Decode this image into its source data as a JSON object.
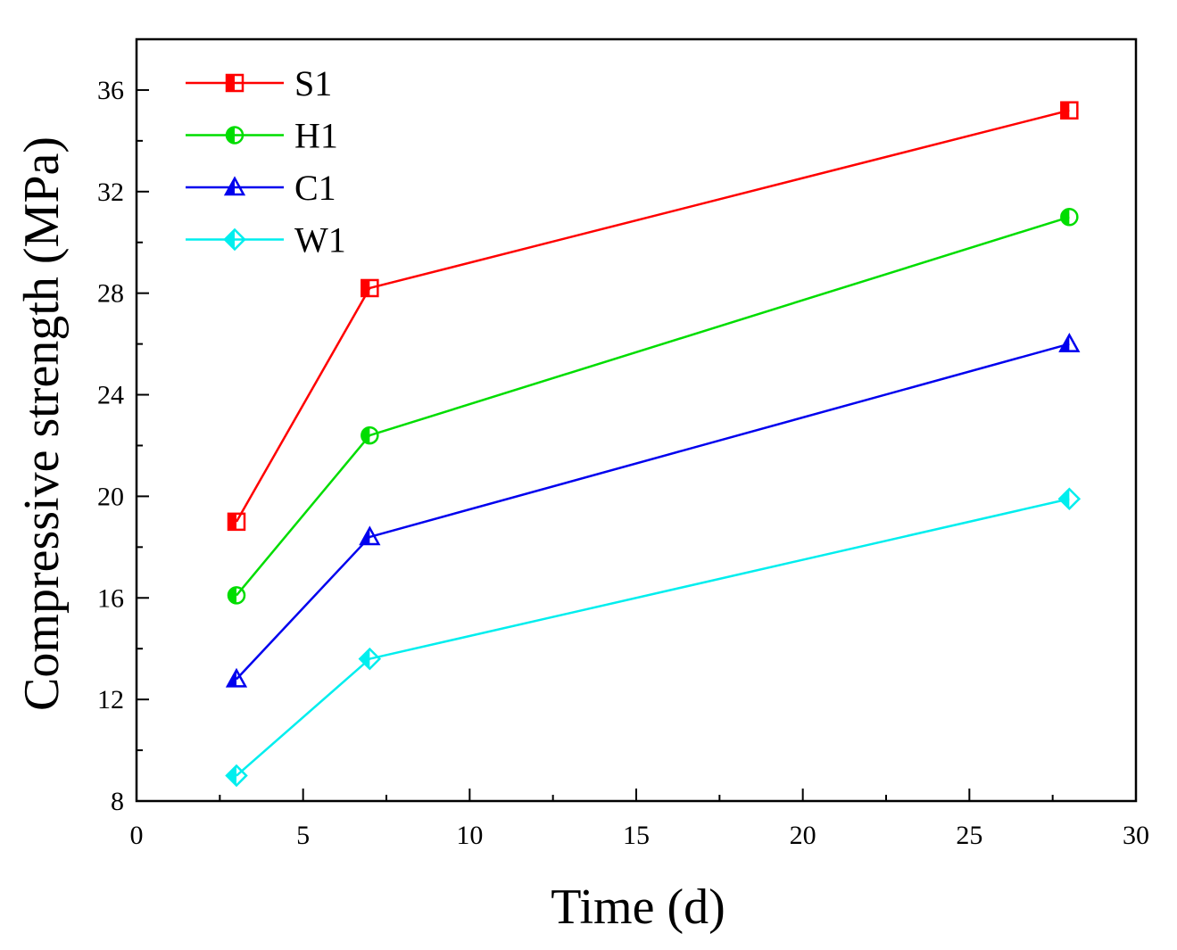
{
  "chart_data": {
    "type": "line",
    "title": "",
    "xlabel": "Time (d)",
    "ylabel": "Compressive strength (MPa)",
    "xlim": [
      0,
      30
    ],
    "ylim": [
      8,
      38
    ],
    "xticks": [
      0,
      5,
      10,
      15,
      20,
      25,
      30
    ],
    "yticks": [
      8,
      12,
      16,
      20,
      24,
      28,
      32,
      36
    ],
    "x": [
      3,
      7,
      28
    ],
    "legend_position": "top-left",
    "grid": false,
    "series": [
      {
        "name": "S1",
        "values": [
          19.0,
          28.2,
          35.2
        ],
        "color": "#ff0000",
        "marker": "square-half"
      },
      {
        "name": "H1",
        "values": [
          16.1,
          22.4,
          31.0
        ],
        "color": "#00dd00",
        "marker": "circle-half"
      },
      {
        "name": "C1",
        "values": [
          12.8,
          18.4,
          26.0
        ],
        "color": "#0000ee",
        "marker": "triangle-half"
      },
      {
        "name": "W1",
        "values": [
          9.0,
          13.6,
          19.9
        ],
        "color": "#00eeee",
        "marker": "diamond-half"
      }
    ]
  }
}
